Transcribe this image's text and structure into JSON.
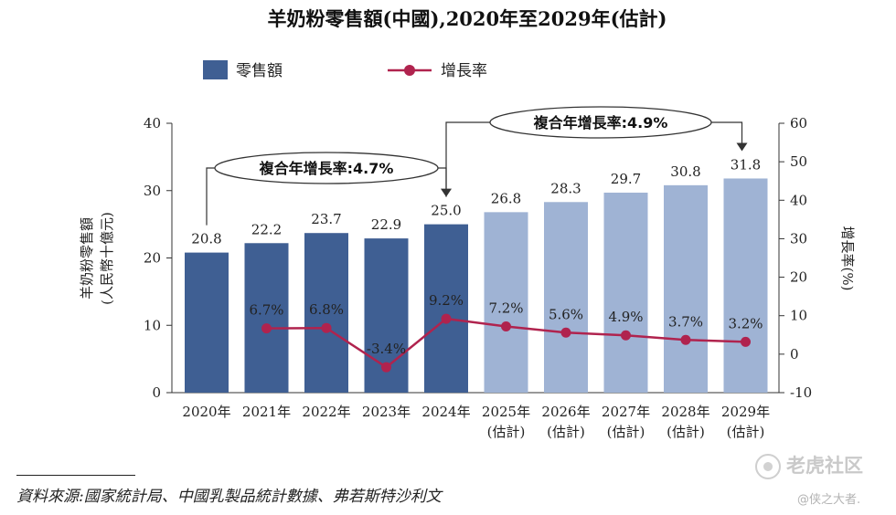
{
  "chart_data": {
    "type": "bar+line",
    "title": "羊奶粉零售額(中國),2020年至2029年(估計)",
    "legend": {
      "bar": "零售額",
      "line": "增長率"
    },
    "categories": [
      "2020年",
      "2021年",
      "2022年",
      "2023年",
      "2024年",
      "2025年",
      "2026年",
      "2027年",
      "2028年",
      "2029年"
    ],
    "category_sublabels": [
      "",
      "",
      "",
      "",
      "",
      "(估計)",
      "(估計)",
      "(估計)",
      "(估計)",
      "(估計)"
    ],
    "bar_series": {
      "name": "零售額",
      "values": [
        20.8,
        22.2,
        23.7,
        22.9,
        25.0,
        26.8,
        28.3,
        29.7,
        30.8,
        31.8
      ],
      "labels": [
        "20.8",
        "22.2",
        "23.7",
        "22.9",
        "25.0",
        "26.8",
        "28.3",
        "29.7",
        "30.8",
        "31.8"
      ],
      "estimated": [
        false,
        false,
        false,
        false,
        false,
        true,
        true,
        true,
        true,
        true
      ]
    },
    "line_series": {
      "name": "增長率",
      "values": [
        null,
        6.7,
        6.8,
        -3.4,
        9.2,
        7.2,
        5.6,
        4.9,
        3.7,
        3.2
      ],
      "labels": [
        "",
        "6.7%",
        "6.8%",
        "-3.4%",
        "9.2%",
        "7.2%",
        "5.6%",
        "4.9%",
        "3.7%",
        "3.2%"
      ]
    },
    "y_left": {
      "label_line1": "羊奶粉零售額",
      "label_line2": "(人民幣十億元)",
      "min": 0,
      "max": 40,
      "ticks": [
        "0",
        "10",
        "20",
        "30",
        "40"
      ]
    },
    "y_right": {
      "label": "增長率(%)",
      "min": -10,
      "max": 60,
      "ticks": [
        "-10",
        "0",
        "10",
        "20",
        "30",
        "40",
        "50",
        "60"
      ]
    },
    "cagr": [
      {
        "text": "複合年增長率:4.7%",
        "from": "2020年",
        "to": "2024年"
      },
      {
        "text": "複合年增長率:4.9%",
        "from": "2024年",
        "to": "2029年"
      }
    ],
    "colors": {
      "bar_actual": "#3f5f93",
      "bar_estimate": "#9fb3d4",
      "line": "#b0234e",
      "axis": "#333333"
    }
  },
  "source": "資料來源:國家統計局、中國乳製品統計數據、弗若斯特沙利文",
  "watermark": {
    "brand": "老虎社区",
    "author": "@侠之大者."
  }
}
